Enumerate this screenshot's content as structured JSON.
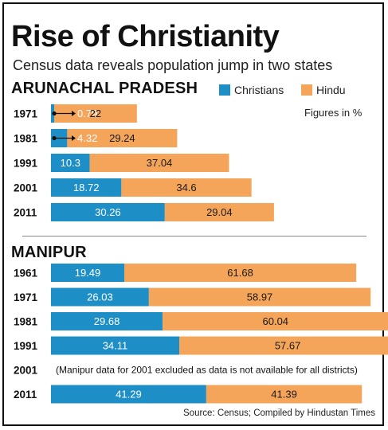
{
  "header": {
    "title": "Rise of Christianity",
    "subtitle": "Census data reveals population jump in two states"
  },
  "legend": [
    {
      "label": "Christians",
      "color": "#1e8fc6"
    },
    {
      "label": "Hindu",
      "color": "#f5a55a"
    }
  ],
  "note": "Figures in %",
  "source": "Source: Census; Compiled by Hindustan Times",
  "chart_data": [
    {
      "type": "bar",
      "stacked": true,
      "orientation": "horizontal",
      "title": "ARUNACHAL PRADESH",
      "categories": [
        "1971",
        "1981",
        "1991",
        "2001",
        "2011"
      ],
      "series": [
        {
          "name": "Christians",
          "values": [
            0.79,
            4.32,
            10.3,
            18.72,
            30.26
          ]
        },
        {
          "name": "Hindu",
          "values": [
            22,
            29.24,
            37.04,
            34.6,
            29.04
          ]
        }
      ],
      "value_labels": {
        "Christians": [
          "0.79",
          "4.32",
          "10.3",
          "18.72",
          "30.26"
        ],
        "Hindu": [
          "22",
          "29.24",
          "37.04",
          "34.6",
          "29.04"
        ]
      }
    },
    {
      "type": "bar",
      "stacked": true,
      "orientation": "horizontal",
      "title": "MANIPUR",
      "categories": [
        "1961",
        "1971",
        "1981",
        "1991",
        "2001",
        "2011"
      ],
      "series": [
        {
          "name": "Christians",
          "values": [
            19.49,
            26.03,
            29.68,
            34.11,
            null,
            41.29
          ]
        },
        {
          "name": "Hindu",
          "values": [
            61.68,
            58.97,
            60.04,
            57.67,
            null,
            41.39
          ]
        }
      ],
      "value_labels": {
        "Christians": [
          "19.49",
          "26.03",
          "29.68",
          "34.11",
          "",
          "41.29"
        ],
        "Hindu": [
          "61.68",
          "58.97",
          "60.04",
          "57.67",
          "",
          "41.39"
        ]
      },
      "missing_note": "(Manipur data for 2001 excluded as data is not available for all districts)"
    }
  ]
}
